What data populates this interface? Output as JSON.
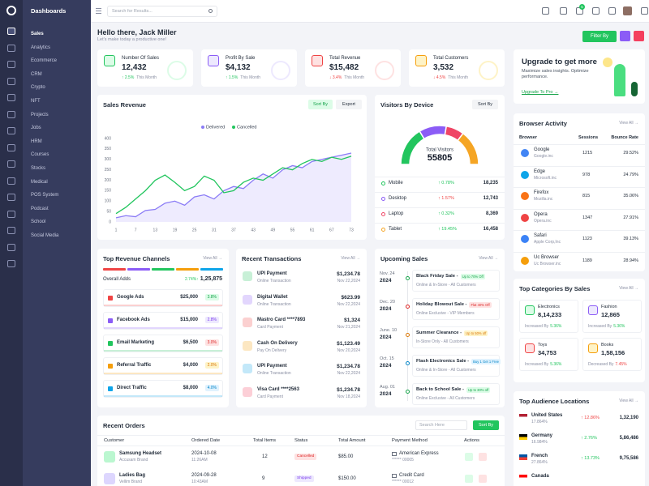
{
  "sidebar": {
    "brand": "Dashboards",
    "menu": [
      "Sales",
      "Analytics",
      "Ecommerce",
      "CRM",
      "Crypto",
      "NFT",
      "Projects",
      "Jobs",
      "HRM",
      "Courses",
      "Stocks",
      "Medical",
      "POS System",
      "Podcast",
      "School",
      "Social Media"
    ]
  },
  "header": {
    "search": "Search for Results...",
    "cart_badge": "5"
  },
  "welcome": {
    "title": "Hello there, Jack Miller",
    "subtitle": "Let's make today a productive one!",
    "filter": "Filter By"
  },
  "stats": [
    {
      "label": "Number Of Sales",
      "value": "12,432",
      "change": "↑ 2.5%",
      "period": "This Month"
    },
    {
      "label": "Profit By Sale",
      "value": "$4,132",
      "change": "↑ 1.5%",
      "period": "This Month"
    },
    {
      "label": "Total Revenue",
      "value": "$15,482",
      "change": "↓ 3.4%",
      "period": "This Month"
    },
    {
      "label": "Total Customers",
      "value": "3,532",
      "change": "↓ 4.5%",
      "period": "This Month"
    }
  ],
  "upgrade": {
    "title": "Upgrade to get more",
    "text": "Maximize sales insights. Optimize performance.",
    "link": "Upgrade To Pro →"
  },
  "sales_revenue": {
    "title": "Sales Revenue",
    "sort": "Sort By",
    "export": "Export"
  },
  "visitors": {
    "title": "Visitors By Device",
    "sort": "Sort By"
  },
  "browser_activity": {
    "title": "Browser Activity",
    "view_all": "View All →",
    "columns": [
      "Browser",
      "Sessions",
      "Bounce Rate"
    ],
    "rows": [
      {
        "name": "Google",
        "company": "Google.inc",
        "sessions": 1215,
        "bounce": "29.52%"
      },
      {
        "name": "Edge",
        "company": "Microsoft.inc",
        "sessions": 978,
        "bounce": "24.79%"
      },
      {
        "name": "Firefox",
        "company": "Mozilla.inc",
        "sessions": 815,
        "bounce": "35.06%"
      },
      {
        "name": "Opera",
        "company": "Opera.inc",
        "sessions": 1347,
        "bounce": "27.91%"
      },
      {
        "name": "Safari",
        "company": "Apple Corp,Inc",
        "sessions": 1123,
        "bounce": "39.13%"
      },
      {
        "name": "Uc Browser",
        "company": "Uc Browser.inc",
        "sessions": 1189,
        "bounce": "28.94%"
      }
    ]
  },
  "revenue_channels": {
    "title": "Top Revenue Channels",
    "view_all": "View All →",
    "overall_label": "Overall Adds",
    "overall_change": "2.74%↑",
    "overall_value": "1,25,875",
    "rows": [
      {
        "name": "Google Ads",
        "amount": "$25,000",
        "rate": "3.8%"
      },
      {
        "name": "Facebook Ads",
        "amount": "$15,000",
        "rate": "2.8%"
      },
      {
        "name": "Email Marketing",
        "amount": "$6,500",
        "rate": "3.0%"
      },
      {
        "name": "Referral Traffic",
        "amount": "$4,000",
        "rate": "2.0%"
      },
      {
        "name": "Direct Traffic",
        "amount": "$8,000",
        "rate": "4.0%"
      }
    ]
  },
  "transactions": {
    "title": "Recent Transactions",
    "view_all": "View All →",
    "rows": [
      {
        "name": "UPI Payment",
        "type": "Online Transaction",
        "amount": "$1,234.78",
        "date": "Nov 22,2024"
      },
      {
        "name": "Digital Wallet",
        "type": "Online Transaction",
        "amount": "$623.99",
        "date": "Nov 22,2024"
      },
      {
        "name": "Mastro Card ****7893",
        "type": "Card Payment",
        "amount": "$1,324",
        "date": "Nov 21,2024"
      },
      {
        "name": "Cash On Delivery",
        "type": "Pay On Delivery",
        "amount": "$1,123.49",
        "date": "Nov 20,2024"
      },
      {
        "name": "UPI Payment",
        "type": "Online Transaction",
        "amount": "$1,234.78",
        "date": "Nov 22,2024"
      },
      {
        "name": "Visa Card ****2563",
        "type": "Card Payment",
        "amount": "$1,234.78",
        "date": "Nov 18,2024"
      }
    ]
  },
  "upcoming_sales": {
    "title": "Upcoming Sales",
    "view_all": "View All →",
    "rows": [
      {
        "month": "Nov. 24",
        "year": "2024",
        "name": "Black Friday Sale -",
        "offer": "Up to 70% Off",
        "audience": "Online & In-Store - All Customers"
      },
      {
        "month": "Dec. 20",
        "year": "2024",
        "name": "Holiday Blowout Sale -",
        "offer": "Flat 40% Off",
        "audience": "Online Exclusive - VIP Members"
      },
      {
        "month": "June. 10",
        "year": "2024",
        "name": "Summer Clearance -",
        "offer": "Up to 50% off",
        "audience": "In-Store Only - All Customers"
      },
      {
        "month": "Oct. 15",
        "year": "2024",
        "name": "Flash Electronics Sale -",
        "offer": "Buy 1 Get 1 Free",
        "audience": "Online & In-Store - All Customers"
      },
      {
        "month": "Aug. 01",
        "year": "2024",
        "name": "Back to School Sale -",
        "offer": "Up to 30% off",
        "audience": "Online Exclusive - All Customers"
      }
    ]
  },
  "top_categories": {
    "title": "Top Categories By Sales",
    "view_all": "View All →",
    "items": [
      {
        "name": "Electronics",
        "value": "8,14,233",
        "trend": "Increased By",
        "change": "5.36%"
      },
      {
        "name": "Fashion",
        "value": "12,865",
        "trend": "Increased By",
        "change": "5.36%"
      },
      {
        "name": "Toys",
        "value": "34,753",
        "trend": "Increased By",
        "change": "5.36%"
      },
      {
        "name": "Books",
        "value": "1,58,156",
        "trend": "Decreased By",
        "change": "7.45%"
      }
    ]
  },
  "audience": {
    "title": "Top Audience Locations",
    "view_all": "View All →",
    "rows": [
      {
        "country": "United States",
        "share": "17.864%",
        "change": "↑ 12.86%",
        "value": "1,32,190"
      },
      {
        "country": "Germany",
        "share": "16.984%",
        "change": "↑ 2.76%",
        "value": "5,86,486"
      },
      {
        "country": "French",
        "share": "27.864%",
        "change": "↑ 13.73%",
        "value": "9,75,586"
      },
      {
        "country": "Canada",
        "share": "",
        "change": "",
        "value": ""
      }
    ]
  },
  "orders": {
    "title": "Recent Orders",
    "search": "Search Here",
    "sort": "Sort By",
    "columns": [
      "Customer",
      "Ordered Date",
      "Total Items",
      "Status",
      "Total Amount",
      "Payment Method",
      "Actions"
    ],
    "rows": [
      {
        "product": "Samsung Headset",
        "brand": "Accusam Brand",
        "date": "2024-10-08",
        "time": "11:26AM",
        "items": "12",
        "status": "Cancelled",
        "amount": "$85.00",
        "method": "American Express",
        "card": "****** 00005"
      },
      {
        "product": "Ladies Bag",
        "brand": "Vellim Brand",
        "date": "2024-09-28",
        "time": "10:43AM",
        "items": "9",
        "status": "Shipped",
        "amount": "$150.00",
        "method": "Credit Card",
        "card": "****** 00012"
      }
    ]
  },
  "chart_data": [
    {
      "type": "line",
      "legend": "top",
      "x": [
        1,
        4,
        7,
        10,
        13,
        16,
        19,
        22,
        25,
        28,
        31,
        34,
        37,
        40,
        43,
        46,
        49,
        52,
        55,
        58,
        61,
        64,
        67,
        70,
        73
      ],
      "series": [
        {
          "name": "Delivered",
          "color": "#8b7cf6",
          "area": true,
          "values": [
            20,
            30,
            25,
            55,
            60,
            90,
            100,
            80,
            120,
            130,
            110,
            150,
            170,
            160,
            200,
            230,
            210,
            250,
            270,
            260,
            290,
            300,
            310,
            320,
            330
          ]
        },
        {
          "name": "Cancelled",
          "color": "#22c55e",
          "values": [
            40,
            70,
            110,
            150,
            200,
            225,
            190,
            150,
            170,
            220,
            200,
            140,
            150,
            190,
            210,
            200,
            230,
            260,
            250,
            280,
            300,
            290,
            310,
            300,
            315
          ]
        }
      ],
      "xlim": [
        1,
        73
      ],
      "xticks": [
        1,
        7,
        13,
        19,
        25,
        31,
        37,
        43,
        49,
        55,
        61,
        67,
        73
      ],
      "ylim": [
        0,
        400
      ],
      "yticks": [
        0,
        50,
        100,
        150,
        200,
        250,
        300,
        350,
        400
      ],
      "grid": false
    },
    {
      "type": "doughnut",
      "categories": [
        "Mobile",
        "Desktop",
        "Laptop",
        "Tablet"
      ],
      "values": [
        18235,
        12743,
        8369,
        16458
      ],
      "value_labels": [
        "18,235",
        "12,743",
        "8,369",
        "16,458"
      ],
      "colors": [
        "#22c55e",
        "#8b5cf6",
        "#ef4565",
        "#f5a524"
      ],
      "changes": [
        "↑ 0.78%",
        "↑ 1.57%",
        "↑ 0.32%",
        "↑ 19.45%"
      ],
      "change_colors": [
        "#22c55e",
        "#ef4444",
        "#22c55e",
        "#22c55e"
      ],
      "total_label": "Total Visitors",
      "total": 55805
    }
  ]
}
